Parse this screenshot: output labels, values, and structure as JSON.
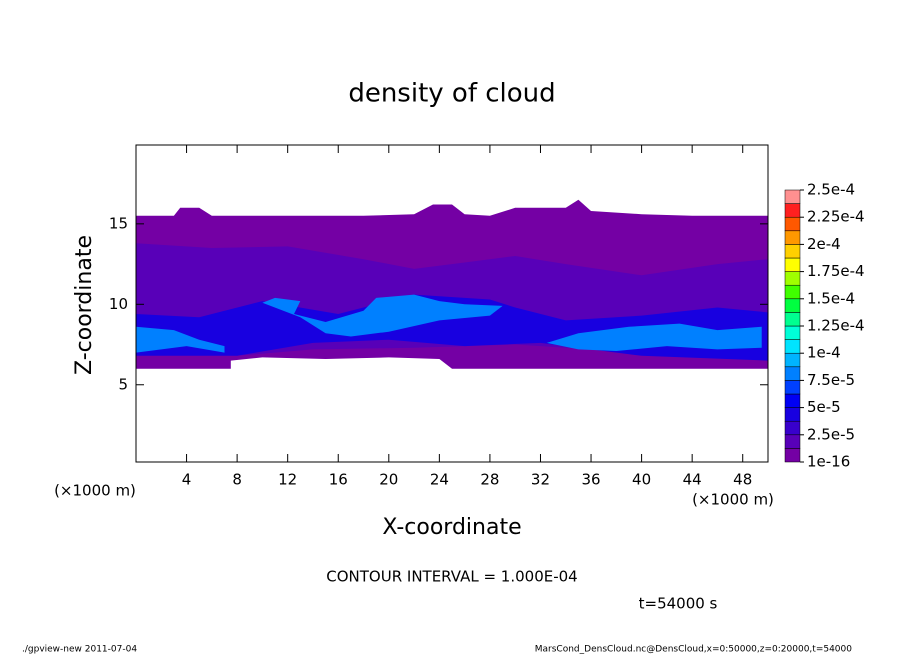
{
  "chart_data": {
    "type": "contour",
    "title": "density of cloud",
    "x_label": "X-coordinate",
    "y_label": "Z-coordinate",
    "x_unit_left": "(×1000 m)",
    "x_unit_right": "(×1000 m)",
    "contour_note": "CONTOUR INTERVAL = 1.000E-04",
    "time_label": "t=54000 s",
    "footer_left": "./gpview-new  2011-07-04",
    "footer_right": "MarsCond_DensCloud.nc@DensCloud,x=0:50000,z=0:20000,t=54000",
    "xlim": [
      0,
      50
    ],
    "ylim": [
      0.2,
      19.9
    ],
    "xticks": [
      4,
      8,
      12,
      16,
      20,
      24,
      28,
      32,
      36,
      40,
      44,
      48
    ],
    "yticks": [
      5,
      10,
      15
    ],
    "colorbar": {
      "levels": [
        1e-16,
        1.25e-05,
        2.5e-05,
        3.75e-05,
        5e-05,
        6.25e-05,
        7.5e-05,
        8.75e-05,
        0.0001,
        0.0001125,
        0.000125,
        0.0001375,
        0.00015,
        0.0001625,
        0.000175,
        0.0001875,
        0.0002,
        0.0002125,
        0.000225,
        0.0002375,
        0.00025
      ],
      "colors": [
        "#7400a4",
        "#5800b8",
        "#3800cc",
        "#1800e0",
        "#0000f4",
        "#0040ff",
        "#0080ff",
        "#00b4ff",
        "#00e4ff",
        "#00ffd8",
        "#00ff90",
        "#00ff40",
        "#40ff00",
        "#a0ff00",
        "#ffff00",
        "#ffd000",
        "#ff9800",
        "#ff5800",
        "#ff2020",
        "#ff9090"
      ],
      "ticks": [
        {
          "value": 1e-16,
          "label": "1e-16"
        },
        {
          "value": 2.5e-05,
          "label": "2.5e-5"
        },
        {
          "value": 5e-05,
          "label": "5e-5"
        },
        {
          "value": 7.5e-05,
          "label": "7.5e-5"
        },
        {
          "value": 0.0001,
          "label": "1e-4"
        },
        {
          "value": 0.000125,
          "label": "1.25e-4"
        },
        {
          "value": 0.00015,
          "label": "1.5e-4"
        },
        {
          "value": 0.000175,
          "label": "1.75e-4"
        },
        {
          "value": 0.0002,
          "label": "2e-4"
        },
        {
          "value": 0.000225,
          "label": "2.25e-4"
        },
        {
          "value": 0.00025,
          "label": "2.5e-4"
        }
      ]
    },
    "regions": [
      {
        "value": 5e-06,
        "x": [
          0,
          0,
          3,
          3.5,
          5,
          6,
          10,
          14,
          18,
          22,
          23.5,
          25,
          26,
          28,
          30,
          34,
          35,
          36,
          40,
          44,
          50,
          50,
          40,
          30,
          25,
          24,
          20,
          15,
          10,
          7.5,
          7.5,
          0
        ],
        "z": [
          6,
          15.5,
          15.5,
          16,
          16,
          15.5,
          15.5,
          15.5,
          15.5,
          15.6,
          16.2,
          16.2,
          15.6,
          15.5,
          16,
          16,
          16.5,
          15.8,
          15.6,
          15.5,
          15.5,
          6,
          6,
          6,
          6,
          6.6,
          6.7,
          6.6,
          6.7,
          6.5,
          6,
          6
        ]
      },
      {
        "value": 1.8e-05,
        "x": [
          0,
          0,
          6,
          12,
          18,
          22,
          26,
          30,
          34,
          40,
          46,
          50,
          50,
          44,
          36,
          30,
          22,
          14,
          8,
          0
        ],
        "z": [
          7,
          13.8,
          13.5,
          13.6,
          12.8,
          12.2,
          12.6,
          13,
          12.5,
          11.8,
          12.5,
          12.8,
          6.5,
          6.8,
          7.2,
          7.5,
          7.3,
          7.2,
          6.8,
          7
        ]
      },
      {
        "value": 4e-05,
        "x": [
          0,
          0,
          5,
          10,
          16,
          22,
          28,
          30,
          34,
          40,
          46,
          50,
          50,
          40,
          32,
          26,
          20,
          14,
          8,
          0
        ],
        "z": [
          6.8,
          9.4,
          9.2,
          10.2,
          9.4,
          10.6,
          10.3,
          9.8,
          9,
          9.3,
          9.8,
          9.5,
          6.5,
          6.8,
          7.6,
          7.4,
          7.8,
          7.6,
          6.8,
          6.8
        ]
      },
      {
        "value": 8e-05,
        "x": [
          0,
          0,
          3,
          5,
          7,
          7,
          4,
          0
        ],
        "z": [
          7,
          8.6,
          8.4,
          7.8,
          7.4,
          7,
          7.4,
          7
        ]
      },
      {
        "value": 8e-05,
        "x": [
          10,
          11,
          13,
          12.5,
          15,
          18,
          19,
          22,
          24,
          26,
          29,
          28,
          24,
          20,
          17,
          15,
          13,
          10
        ],
        "z": [
          10.1,
          10.4,
          10.2,
          9.4,
          8.9,
          9.6,
          10.4,
          10.6,
          10.2,
          10,
          9.9,
          9.3,
          9,
          8.3,
          8,
          8.2,
          9.2,
          10.1
        ]
      },
      {
        "value": 8e-05,
        "x": [
          32.5,
          35,
          39,
          43,
          46,
          49.5,
          49.5,
          46,
          42,
          38,
          35,
          32.5
        ],
        "z": [
          7.6,
          8.2,
          8.6,
          8.8,
          8.4,
          8.6,
          7.3,
          7.2,
          7.4,
          7.1,
          7.2,
          7.6
        ]
      }
    ]
  }
}
